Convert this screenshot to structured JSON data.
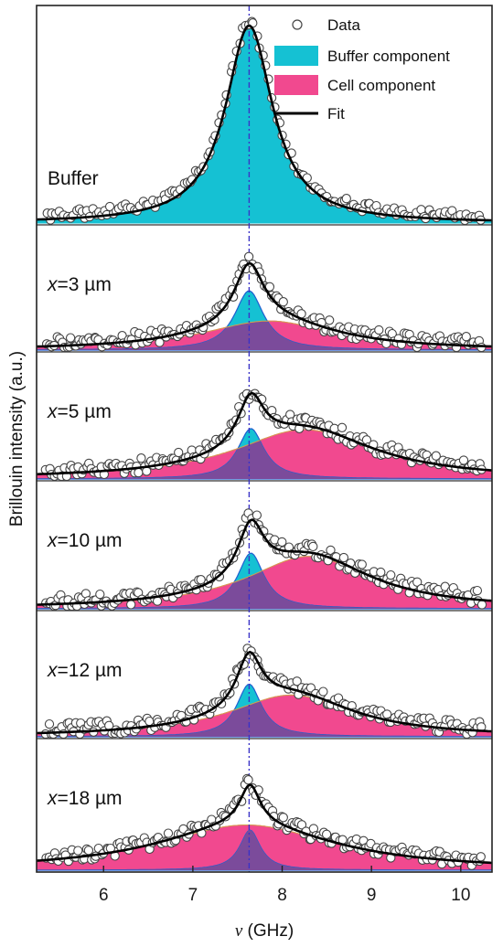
{
  "chart_data": {
    "type": "line",
    "ylabel": "Brillouin intensity (a.u.)",
    "xlabel_symbol": "ν",
    "xlabel_unit": " (GHz)",
    "xlim": [
      5.25,
      10.35
    ],
    "x_ticks": [
      6,
      7,
      8,
      9,
      10
    ],
    "x_tick_labels": [
      "6",
      "7",
      "8",
      "9",
      "10"
    ],
    "reference_line_x": 7.63,
    "legend": {
      "position": "top-right",
      "entries": [
        {
          "label": "Data",
          "marker": "open-circle"
        },
        {
          "label": "Buffer component",
          "color": "#15c1d3"
        },
        {
          "label": "Cell component",
          "color": "#f1498f"
        },
        {
          "label": "Fit",
          "color": "#000000"
        }
      ]
    },
    "colors": {
      "buffer": "#15c1d3",
      "cell": "#f1498f",
      "overlap": "#7b4b9b",
      "fit": "#000000",
      "reference_line": "#3a33c7"
    },
    "panels": [
      {
        "label_prefix": "",
        "label_value": "Buffer",
        "label_unit": "",
        "buffer_peak": {
          "center": 7.63,
          "width": 0.32,
          "amplitude": 1.0
        },
        "cell_peak": null,
        "fit_peak_x": 7.63
      },
      {
        "label_prefix": "x",
        "label_value": "=3",
        "label_unit": " µm",
        "buffer_peak": {
          "center": 7.63,
          "width": 0.2,
          "amplitude": 0.55
        },
        "cell_peak": {
          "center": 7.85,
          "width": 0.9,
          "amplitude": 0.27
        },
        "fit_peak_x": 7.67
      },
      {
        "label_prefix": "x",
        "label_value": "=5",
        "label_unit": " µm",
        "buffer_peak": {
          "center": 7.65,
          "width": 0.18,
          "amplitude": 0.46
        },
        "cell_peak": {
          "center": 8.25,
          "width": 0.95,
          "amplitude": 0.45
        },
        "fit_peak_x": 7.66
      },
      {
        "label_prefix": "x",
        "label_value": "=10",
        "label_unit": " µm",
        "buffer_peak": {
          "center": 7.65,
          "width": 0.18,
          "amplitude": 0.5
        },
        "cell_peak": {
          "center": 8.3,
          "width": 0.85,
          "amplitude": 0.47
        },
        "fit_peak_x": 7.67
      },
      {
        "label_prefix": "x",
        "label_value": "=12",
        "label_unit": " µm",
        "buffer_peak": {
          "center": 7.63,
          "width": 0.17,
          "amplitude": 0.48
        },
        "cell_peak": {
          "center": 8.1,
          "width": 0.85,
          "amplitude": 0.38
        },
        "fit_peak_x": 7.65
      },
      {
        "label_prefix": "x",
        "label_value": "=18",
        "label_unit": " µm",
        "buffer_peak": {
          "center": 7.64,
          "width": 0.14,
          "amplitude": 0.4
        },
        "cell_peak": {
          "center": 7.6,
          "width": 1.2,
          "amplitude": 0.45
        },
        "fit_peak_x": 7.64
      }
    ]
  }
}
